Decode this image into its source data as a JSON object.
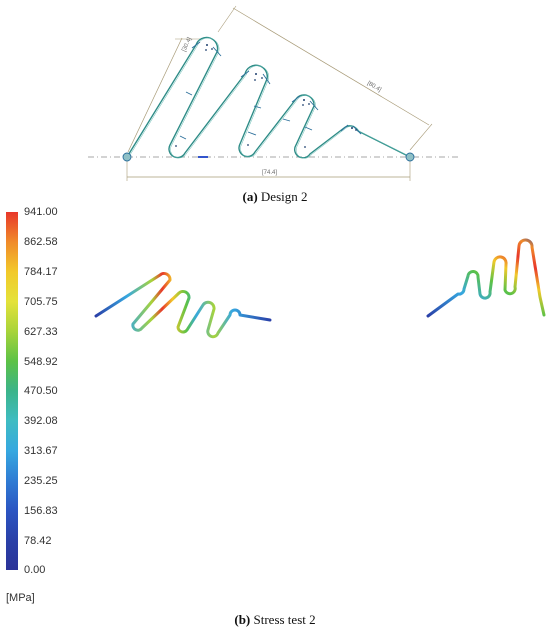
{
  "figure_a": {
    "caption_tag": "(a)",
    "caption_text": "Design 2",
    "dimensions": [
      "[30.4]",
      "[80.4]",
      "[74.4]"
    ]
  },
  "figure_b": {
    "caption_tag": "(b)",
    "caption_text": "Stress test 2",
    "colorbar": {
      "units": "[MPa]",
      "ticks": [
        "941.00",
        "862.58",
        "784.17",
        "705.75",
        "627.33",
        "548.92",
        "470.50",
        "392.08",
        "313.67",
        "235.25",
        "156.83",
        "78.42",
        "0.00"
      ],
      "colors_top_to_bottom": [
        "#e8372a",
        "#f08a2a",
        "#f2c92a",
        "#e4e23a",
        "#a8d43a",
        "#5cc246",
        "#3cb48a",
        "#3fbcc2",
        "#36a8e0",
        "#2f7cd4",
        "#2b55c2",
        "#2a40a8",
        "#2b3398"
      ]
    }
  }
}
